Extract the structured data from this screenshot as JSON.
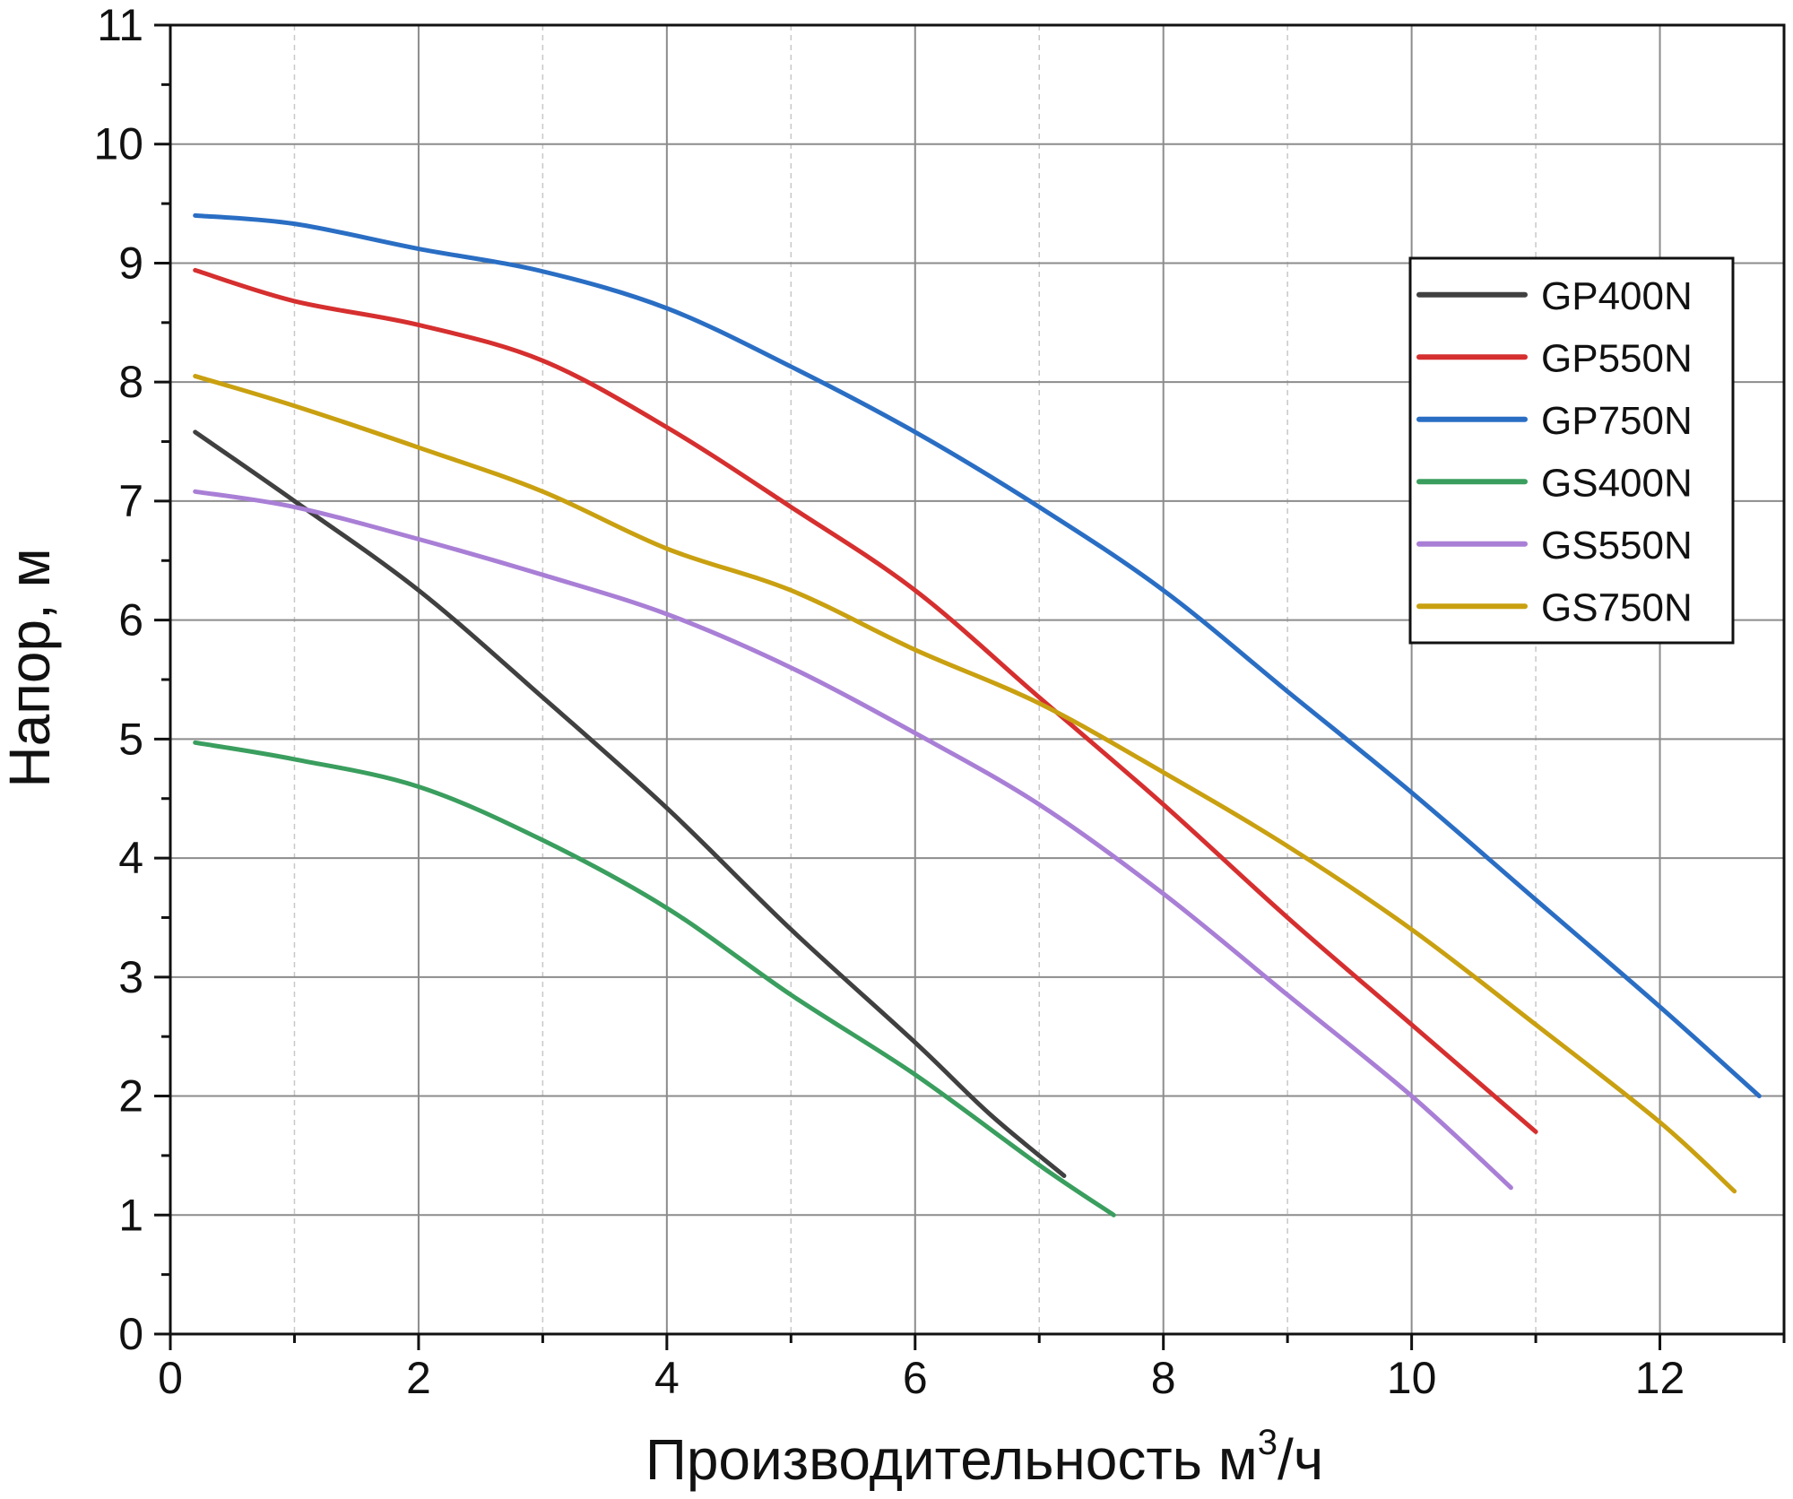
{
  "chart_data": {
    "type": "line",
    "title": "",
    "xlabel": "Производительность м",
    "xlabel_sup": "3",
    "xlabel_suffix": "/ч",
    "ylabel": "Напор, м",
    "xlim": [
      0,
      13
    ],
    "ylim": [
      0,
      11
    ],
    "x_ticks": [
      "0",
      "2",
      "4",
      "6",
      "8",
      "10",
      "12"
    ],
    "y_ticks": [
      "0",
      "1",
      "2",
      "3",
      "4",
      "5",
      "6",
      "7",
      "8",
      "9",
      "10",
      "11"
    ],
    "grid": true,
    "legend_position": "top-right",
    "series": [
      {
        "name": "GP400N",
        "color": "#404040",
        "x": [
          0.2,
          1,
          2,
          3,
          4,
          5,
          6,
          6.6,
          7.2
        ],
        "y": [
          7.58,
          7.0,
          6.25,
          5.35,
          4.42,
          3.4,
          2.45,
          1.85,
          1.33
        ]
      },
      {
        "name": "GP550N",
        "color": "#d62f2f",
        "x": [
          0.2,
          1,
          2,
          3,
          4,
          5,
          6,
          7,
          8,
          9,
          10,
          11
        ],
        "y": [
          8.94,
          8.68,
          8.48,
          8.18,
          7.62,
          6.95,
          6.25,
          5.35,
          4.45,
          3.5,
          2.6,
          1.7
        ]
      },
      {
        "name": "GP750N",
        "color": "#2a6ec4",
        "x": [
          0.2,
          1,
          2,
          3,
          4,
          5,
          6,
          7,
          8,
          9,
          10,
          11,
          12,
          12.8
        ],
        "y": [
          9.4,
          9.33,
          9.12,
          8.93,
          8.62,
          8.13,
          7.58,
          6.95,
          6.25,
          5.4,
          4.55,
          3.65,
          2.75,
          2.0
        ]
      },
      {
        "name": "GS400N",
        "color": "#3a9e5e",
        "x": [
          0.2,
          1,
          2,
          3,
          4,
          5,
          6,
          7,
          7.6
        ],
        "y": [
          4.97,
          4.83,
          4.6,
          4.15,
          3.58,
          2.85,
          2.18,
          1.42,
          1.0
        ]
      },
      {
        "name": "GS550N",
        "color": "#a97fd6",
        "x": [
          0.2,
          1,
          2,
          3,
          4,
          5,
          6,
          7,
          8,
          9,
          10,
          10.8
        ],
        "y": [
          7.08,
          6.95,
          6.68,
          6.38,
          6.05,
          5.6,
          5.05,
          4.45,
          3.7,
          2.85,
          2.0,
          1.23
        ]
      },
      {
        "name": "GS750N",
        "color": "#c9a010",
        "x": [
          0.2,
          1,
          2,
          3,
          4,
          5,
          6,
          7,
          8,
          9,
          10,
          11,
          12,
          12.6
        ],
        "y": [
          8.05,
          7.8,
          7.45,
          7.08,
          6.6,
          6.25,
          5.75,
          5.3,
          4.72,
          4.1,
          3.4,
          2.6,
          1.78,
          1.2
        ]
      }
    ]
  }
}
